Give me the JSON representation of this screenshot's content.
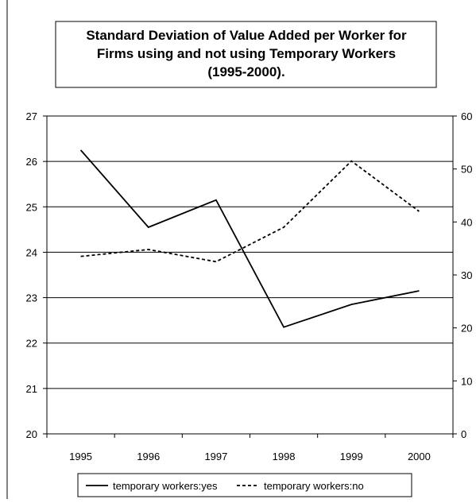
{
  "chart_data": {
    "type": "line",
    "title": [
      "Standard Deviation of Value Added per Worker for",
      "Firms using and not using Temporary Workers",
      "(1995-2000)."
    ],
    "categories": [
      "1995",
      "1996",
      "1997",
      "1998",
      "1999",
      "2000"
    ],
    "series": [
      {
        "name": "temporary workers:yes",
        "color": "#000000",
        "dash": "solid",
        "values": [
          26.25,
          24.55,
          25.15,
          22.35,
          22.85,
          23.15
        ]
      },
      {
        "name": "temporary workers:no",
        "color": "#000000",
        "dash": "dashed",
        "axis": "y2",
        "values": [
          33.5,
          34.8,
          32.5,
          39,
          51.5,
          42
        ]
      }
    ],
    "ylim": [
      20,
      27
    ],
    "yticks": [
      20,
      21,
      22,
      23,
      24,
      25,
      26,
      27
    ],
    "y2lim": [
      0,
      60
    ],
    "y2ticks": [
      0,
      10,
      20,
      30,
      40,
      50,
      60
    ],
    "grid": true,
    "legend": "bottom"
  }
}
